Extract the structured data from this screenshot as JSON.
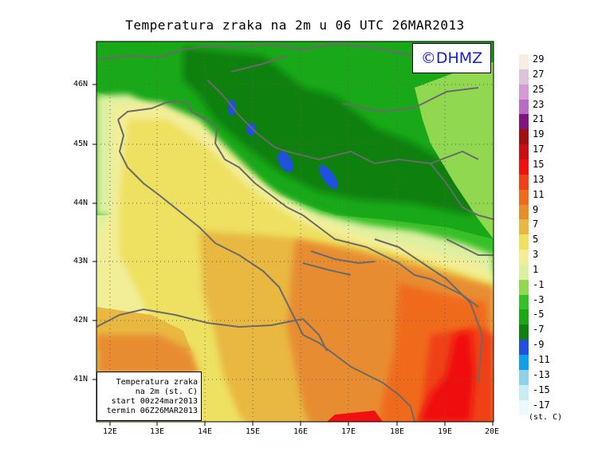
{
  "title": "Temperatura zraka na 2m u 06 UTC 26MAR2013",
  "logo": "©DHMZ",
  "info_box": {
    "line1": "Temperatura zraka",
    "line2": "na 2m (st. C)",
    "line3": "start 00z24mar2013",
    "line4": "termin 06Z26MAR2013"
  },
  "lat_labels": [
    "46N",
    "45N",
    "44N",
    "43N",
    "42N",
    "41N"
  ],
  "lon_labels": [
    "12E",
    "13E",
    "14E",
    "15E",
    "16E",
    "17E",
    "18E",
    "19E",
    "20E"
  ],
  "legend": {
    "unit": "(st. C)",
    "labels": [
      "29",
      "27",
      "25",
      "23",
      "21",
      "19",
      "17",
      "15",
      "13",
      "11",
      "9",
      "7",
      "5",
      "3",
      "1",
      "-1",
      "-3",
      "-5",
      "-7",
      "-9",
      "-11",
      "-13",
      "-15",
      "-17"
    ],
    "colors": [
      "#f8eee0",
      "#dcc3dc",
      "#d49ad4",
      "#b86cc8",
      "#801480",
      "#a01010",
      "#c81010",
      "#f01010",
      "#f04018",
      "#f06a1c",
      "#e88c30",
      "#e8b840",
      "#eee060",
      "#f2ee98",
      "#dcf0a0",
      "#90d850",
      "#38c028",
      "#18a818",
      "#108010",
      "#2050e0",
      "#10a0e8",
      "#90d0e8",
      "#c8ecf4",
      "#ecfafc"
    ]
  },
  "map": {
    "colors": {
      "green_dark": "#108010",
      "green": "#18a818",
      "green_mid": "#38c028",
      "green_light": "#90d850",
      "pale": "#dcf0a0",
      "pale_yellow": "#f2ee98",
      "yellow": "#eee060",
      "gold": "#e8b840",
      "orange": "#e88c30",
      "orange_dark": "#f06a1c",
      "red_orange": "#f04018",
      "red": "#f01010",
      "blue": "#2050e0",
      "border": "#6a6a6a"
    }
  }
}
